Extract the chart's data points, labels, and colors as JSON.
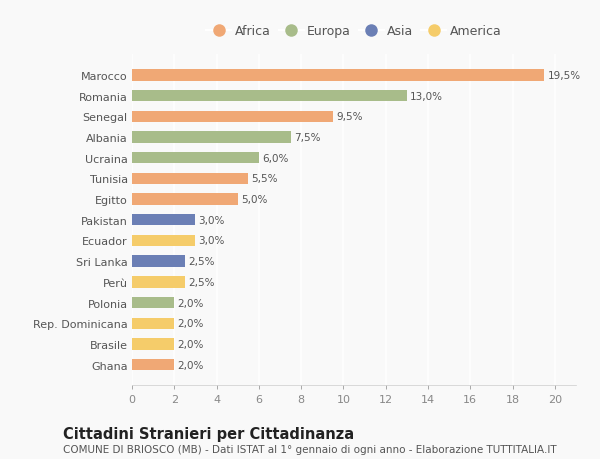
{
  "countries": [
    "Marocco",
    "Romania",
    "Senegal",
    "Albania",
    "Ucraina",
    "Tunisia",
    "Egitto",
    "Pakistan",
    "Ecuador",
    "Sri Lanka",
    "Perù",
    "Polonia",
    "Rep. Dominicana",
    "Brasile",
    "Ghana"
  ],
  "values": [
    19.5,
    13.0,
    9.5,
    7.5,
    6.0,
    5.5,
    5.0,
    3.0,
    3.0,
    2.5,
    2.5,
    2.0,
    2.0,
    2.0,
    2.0
  ],
  "labels": [
    "19,5%",
    "13,0%",
    "9,5%",
    "7,5%",
    "6,0%",
    "5,5%",
    "5,0%",
    "3,0%",
    "3,0%",
    "2,5%",
    "2,5%",
    "2,0%",
    "2,0%",
    "2,0%",
    "2,0%"
  ],
  "continents": [
    "Africa",
    "Europa",
    "Africa",
    "Europa",
    "Europa",
    "Africa",
    "Africa",
    "Asia",
    "America",
    "Asia",
    "America",
    "Europa",
    "America",
    "America",
    "Africa"
  ],
  "colors": {
    "Africa": "#F0A875",
    "Europa": "#A8BC8A",
    "Asia": "#6B7FB5",
    "America": "#F5CC6A"
  },
  "legend_order": [
    "Africa",
    "Europa",
    "Asia",
    "America"
  ],
  "title": "Cittadini Stranieri per Cittadinanza",
  "subtitle": "COMUNE DI BRIOSCO (MB) - Dati ISTAT al 1° gennaio di ogni anno - Elaborazione TUTTITALIA.IT",
  "xlim": [
    0,
    21
  ],
  "xticks": [
    0,
    2,
    4,
    6,
    8,
    10,
    12,
    14,
    16,
    18,
    20
  ],
  "background_color": "#f9f9f9",
  "grid_color": "#ffffff",
  "bar_height": 0.55,
  "title_fontsize": 10.5,
  "subtitle_fontsize": 7.5,
  "label_fontsize": 7.5,
  "tick_fontsize": 8,
  "legend_fontsize": 9
}
